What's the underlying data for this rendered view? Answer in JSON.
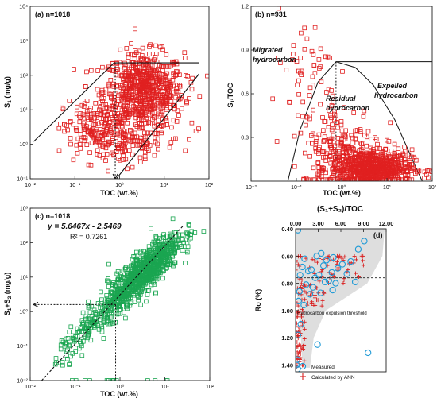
{
  "panels": {
    "a": {
      "label": "(a) n=1018",
      "xlabel": "TOC (wt.%)",
      "ylabel_main": "S",
      "ylabel_sub": "1",
      "ylabel_rest": " (mg/g)",
      "xticks": [
        "10⁻²",
        "10⁻¹",
        "10⁰",
        "10¹",
        "10²"
      ],
      "yticks": [
        "10⁻¹",
        "10⁰",
        "10¹",
        "10²",
        "10³",
        "10⁴"
      ]
    },
    "b": {
      "label": "(b) n=931",
      "xlabel": "TOC (wt.%)",
      "ylabel_main": "S",
      "ylabel_sub": "1",
      "ylabel_rest": "/TOC",
      "xticks": [
        "10⁻²",
        "10⁻¹",
        "10⁰",
        "10¹",
        "10²"
      ],
      "yticks": [
        "0.3",
        "0.6",
        "0.9",
        "1.2"
      ],
      "annotations": {
        "migrated_1": "Migrated",
        "migrated_2": "hydrocarbon",
        "residual_1": "Residual",
        "residual_2": "hydrocarbon",
        "expelled_1": "Expelled",
        "expelled_2": "hydrocarbon"
      }
    },
    "c": {
      "label": "(c) n=1018",
      "xlabel": "TOC (wt.%)",
      "ylabel_main": "S",
      "ylabel_sub1": "1",
      "ylabel_plus": "+S",
      "ylabel_sub2": "2",
      "ylabel_rest": " (mg/g)",
      "xticks": [
        "10⁻²",
        "10⁻¹",
        "10⁰",
        "10¹",
        "10²"
      ],
      "yticks": [
        "10⁻²",
        "10⁻¹",
        "10⁰",
        "10¹",
        "10²",
        "10³"
      ],
      "equation": "y = 5.6467x - 2.5469",
      "r2": "R² = 0.7261"
    },
    "d": {
      "label": "(d)",
      "top_label": "(S₁+S₂)/TOC",
      "ylabel": "Ro (%)",
      "xticks": [
        "0.00",
        "3.00",
        "6.00",
        "9.00",
        "12.00"
      ],
      "yticks": [
        "0.40",
        "0.60",
        "0.80",
        "1.00",
        "1.20",
        "1.40"
      ],
      "threshold_label": "Hydrocarbon expulsion threshold",
      "legend": [
        "Measured",
        "Calculated by ANN"
      ]
    }
  },
  "colors": {
    "a": "#e02020",
    "b": "#e02020",
    "c": "#1aa550",
    "measured": "#1f9ad6",
    "ann": "#d92020",
    "envelope": "#d0d0d0"
  },
  "chart_data": [
    {
      "type": "scatter",
      "panel": "a",
      "xscale": "log",
      "yscale": "log",
      "xlim": [
        0.01,
        100
      ],
      "ylim": [
        0.1,
        10000
      ],
      "xlabel": "TOC (wt.%)",
      "ylabel": "S1 (mg/g)",
      "n": 1018,
      "envelope_lines": [
        {
          "x": [
            0.012,
            0.75
          ],
          "y": [
            1.2,
            230
          ]
        },
        {
          "x": [
            0.75,
            60
          ],
          "y": [
            230,
            230
          ]
        },
        {
          "x": [
            0.85,
            60
          ],
          "y": [
            0.1,
            110
          ]
        }
      ],
      "cutoff": {
        "x": 0.8,
        "y_from": 0.1,
        "y_to": 230
      },
      "clusters": [
        {
          "cx": 3.5,
          "cy": 35,
          "sx": 0.45,
          "sy": 0.55,
          "n": 720
        },
        {
          "cx": 0.35,
          "cy": 2.5,
          "sx": 0.4,
          "sy": 0.45,
          "n": 220
        },
        {
          "cx": 2.5,
          "cy": 1.2,
          "sx": 0.5,
          "sy": 0.25,
          "n": 78
        }
      ]
    },
    {
      "type": "scatter",
      "panel": "b",
      "xscale": "log",
      "xlim": [
        0.01,
        100
      ],
      "ylim": [
        0,
        1.2
      ],
      "xlabel": "TOC (wt.%)",
      "ylabel": "S1/TOC",
      "n": 931,
      "threshold": {
        "toc": 0.75,
        "s1_toc": 0.82
      },
      "envelope_curve": {
        "x": [
          0.065,
          0.12,
          0.3,
          0.75,
          2.0,
          5.0,
          15.0,
          40.0,
          60.0
        ],
        "y": [
          0.0,
          0.35,
          0.68,
          0.82,
          0.78,
          0.66,
          0.42,
          0.12,
          0.0
        ]
      },
      "clusters": [
        {
          "cx": 4.5,
          "cy": 0.09,
          "sx": 0.45,
          "sy": 0.07,
          "n": 700
        },
        {
          "cx": 1.0,
          "cy": 0.25,
          "sx": 0.45,
          "sy": 0.15,
          "n": 180
        },
        {
          "cx": 0.15,
          "cy": 0.75,
          "sx": 0.4,
          "sy": 0.2,
          "n": 51
        }
      ]
    },
    {
      "type": "scatter",
      "panel": "c",
      "xscale": "log",
      "yscale": "log",
      "xlim": [
        0.01,
        100
      ],
      "ylim": [
        0.01,
        1000
      ],
      "xlabel": "TOC (wt.%)",
      "ylabel": "S1+S2 (mg/g)",
      "n": 1018,
      "fit": {
        "x": [
          0.018,
          25
        ],
        "y": [
          0.01,
          300
        ],
        "equation": "y = 5.6467x - 2.5469",
        "r2": 0.7261
      },
      "threshold": {
        "x": 0.8,
        "y": 1.6
      },
      "clusters": [
        {
          "cx": 3.5,
          "cy": 15,
          "sx": 0.4,
          "sy": 0.5,
          "n": 820
        },
        {
          "cx": 0.3,
          "cy": 0.5,
          "sx": 0.45,
          "sy": 0.4,
          "n": 198
        }
      ]
    },
    {
      "type": "scatter",
      "panel": "d",
      "xlim": [
        0,
        12
      ],
      "ylim": [
        0.4,
        1.45
      ],
      "y_inverted": true,
      "xlabel": "(S1+S2)/TOC",
      "ylabel": "Ro (%)",
      "threshold_ro": 0.76,
      "envelope": {
        "ro": [
          0.4,
          0.6,
          0.8,
          1.0,
          1.2,
          1.42
        ],
        "x_min": [
          0.0,
          0.0,
          0.0,
          0.4,
          0.7,
          0.9
        ],
        "x_max": [
          11.8,
          11.5,
          9.5,
          4.0,
          2.4,
          1.9
        ]
      },
      "series": [
        {
          "name": "Measured",
          "points": [
            [
              0.3,
              0.41
            ],
            [
              9.1,
              0.49
            ],
            [
              8.3,
              0.55
            ],
            [
              2.8,
              0.6
            ],
            [
              3.4,
              0.58
            ],
            [
              1.2,
              0.62
            ],
            [
              4.1,
              0.63
            ],
            [
              5.0,
              0.61
            ],
            [
              6.2,
              0.66
            ],
            [
              0.9,
              0.68
            ],
            [
              2.1,
              0.7
            ],
            [
              3.7,
              0.67
            ],
            [
              4.8,
              0.72
            ],
            [
              5.6,
              0.69
            ],
            [
              7.3,
              0.64
            ],
            [
              0.6,
              0.74
            ],
            [
              1.7,
              0.71
            ],
            [
              2.6,
              0.76
            ],
            [
              3.1,
              0.74
            ],
            [
              4.4,
              0.78
            ],
            [
              5.3,
              0.8
            ],
            [
              6.8,
              0.73
            ],
            [
              7.9,
              0.79
            ],
            [
              1.4,
              0.81
            ],
            [
              2.3,
              0.83
            ],
            [
              3.9,
              0.79
            ],
            [
              4.9,
              0.85
            ],
            [
              0.5,
              0.86
            ],
            [
              1.9,
              0.88
            ],
            [
              3.3,
              0.87
            ],
            [
              0.4,
              0.93
            ],
            [
              1.1,
              0.96
            ],
            [
              0.7,
              1.1
            ],
            [
              0.3,
              1.18
            ],
            [
              2.9,
              1.25
            ],
            [
              9.6,
              1.31
            ],
            [
              0.2,
              1.36
            ],
            [
              0.1,
              1.4
            ],
            [
              0.25,
              1.43
            ]
          ]
        },
        {
          "name": "Calculated by ANN",
          "ro_min": 0.6,
          "ro_max": 1.42,
          "n": 160
        }
      ]
    }
  ]
}
